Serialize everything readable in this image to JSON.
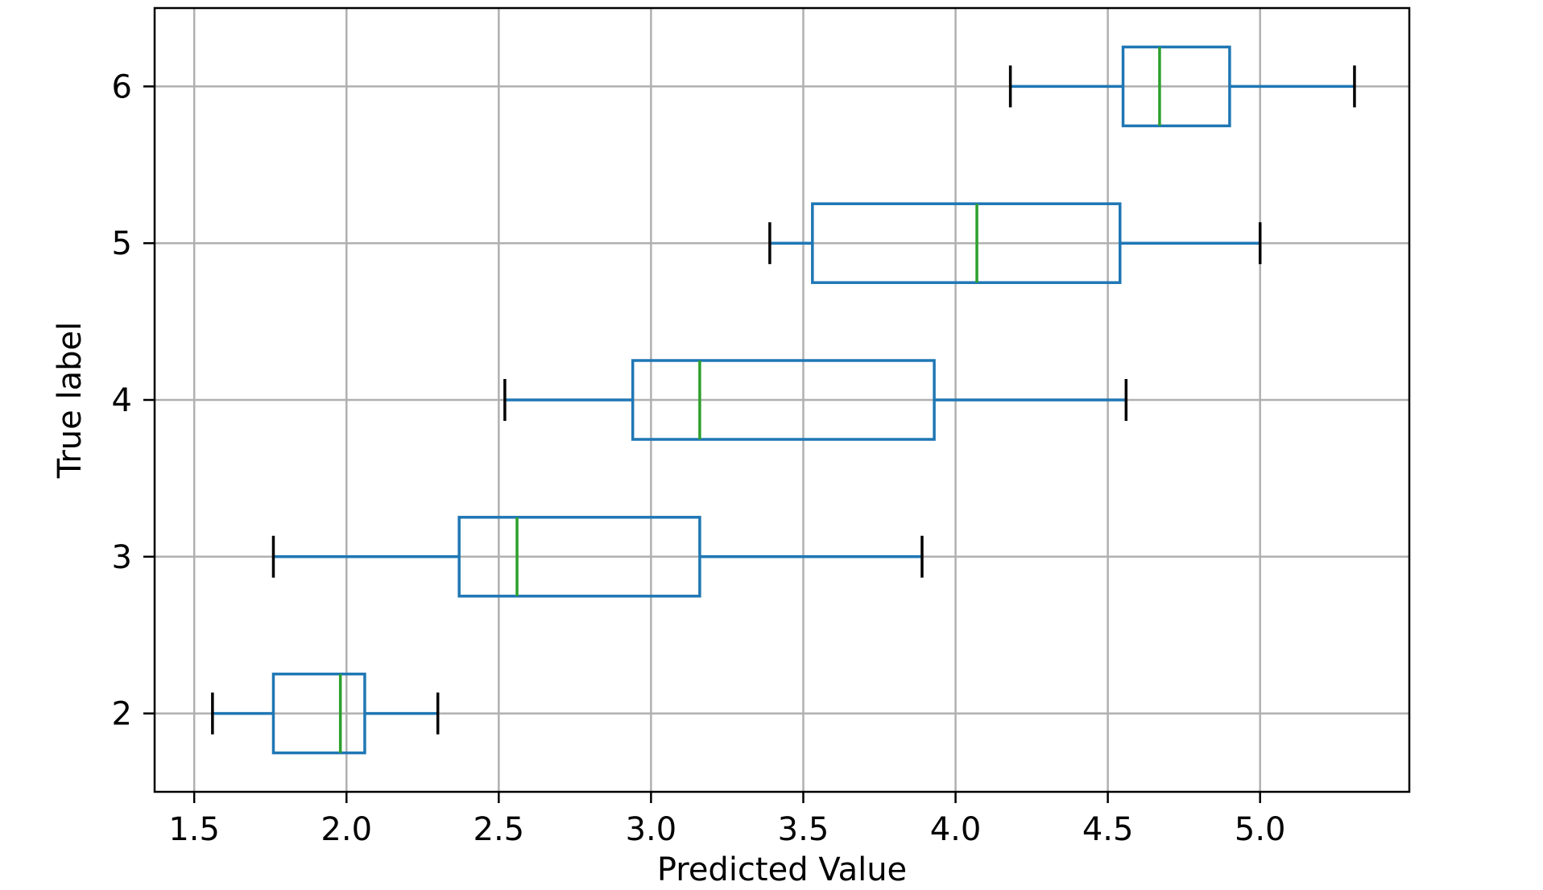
{
  "chart_data": {
    "type": "boxplot",
    "orientation": "horizontal",
    "title": "",
    "xlabel": "Predicted Value",
    "ylabel": "True label",
    "xlim": [
      1.37,
      5.49
    ],
    "ylim": [
      1.5,
      6.5
    ],
    "grid": true,
    "x_ticks": [
      1.5,
      2.0,
      2.5,
      3.0,
      3.5,
      4.0,
      4.5,
      5.0
    ],
    "x_tick_labels": [
      "1.5",
      "2.0",
      "2.5",
      "3.0",
      "3.5",
      "4.0",
      "4.5",
      "5.0"
    ],
    "y_ticks": [
      2,
      3,
      4,
      5,
      6
    ],
    "y_tick_labels": [
      "2",
      "3",
      "4",
      "5",
      "6"
    ],
    "boxes": [
      {
        "label": "2",
        "whisker_low": 1.56,
        "q1": 1.76,
        "median": 1.98,
        "q3": 2.06,
        "whisker_high": 2.3
      },
      {
        "label": "3",
        "whisker_low": 1.76,
        "q1": 2.37,
        "median": 2.56,
        "q3": 3.16,
        "whisker_high": 3.89
      },
      {
        "label": "4",
        "whisker_low": 2.52,
        "q1": 2.94,
        "median": 3.16,
        "q3": 3.93,
        "whisker_high": 4.56
      },
      {
        "label": "5",
        "whisker_low": 3.39,
        "q1": 3.53,
        "median": 4.07,
        "q3": 4.54,
        "whisker_high": 5.0
      },
      {
        "label": "6",
        "whisker_low": 4.18,
        "q1": 4.55,
        "median": 4.67,
        "q3": 4.9,
        "whisker_high": 5.31
      }
    ],
    "colors": {
      "box": "#1f77b4",
      "median": "#2ca02c",
      "caps": "#000000",
      "grid": "#b0b0b0",
      "axes": "#000000"
    }
  }
}
